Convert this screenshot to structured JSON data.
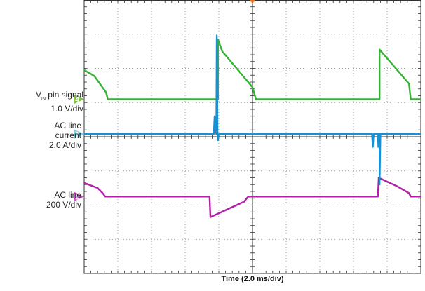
{
  "chart_data": {
    "type": "line",
    "title": "",
    "xlabel": "Time (2.0 ms/div)",
    "grid": true,
    "divisions": {
      "horizontal": 10,
      "vertical": 8
    },
    "xlim": [
      0,
      20
    ],
    "x_unit": "ms",
    "ylim_divisions": [
      0,
      8
    ],
    "trigger_marker_color": "#e8701f",
    "series": [
      {
        "channel": "4",
        "name_prefix": "V",
        "name_subscript": "IN",
        "name_suffix": " pin signal",
        "scale": "1.0 V/div",
        "color": "#34b233",
        "marker_color": "#7bc043",
        "ground_div": 5.1,
        "points": [
          [
            0.0,
            5.95
          ],
          [
            0.6,
            5.78
          ],
          [
            1.3,
            5.3
          ],
          [
            1.4,
            5.1
          ],
          [
            7.4,
            5.1
          ],
          [
            7.95,
            5.1
          ],
          [
            7.95,
            6.85
          ],
          [
            8.2,
            6.5
          ],
          [
            10.0,
            5.45
          ],
          [
            10.2,
            5.1
          ],
          [
            17.5,
            5.1
          ],
          [
            17.55,
            5.1
          ],
          [
            17.55,
            6.55
          ],
          [
            19.3,
            5.55
          ],
          [
            19.4,
            5.1
          ],
          [
            20.0,
            5.1
          ]
        ]
      },
      {
        "channel": "1",
        "name": "AC line current",
        "scale": "2.0 A/div",
        "color": "#1a8fd1",
        "marker_color": "#7fd3e6",
        "ground_div": 4.08,
        "points": [
          [
            0.0,
            4.08
          ],
          [
            7.7,
            4.08
          ],
          [
            7.75,
            4.6
          ],
          [
            7.85,
            4.08
          ],
          [
            7.88,
            6.96
          ],
          [
            7.92,
            4.1
          ],
          [
            7.95,
            3.9
          ],
          [
            8.0,
            4.08
          ],
          [
            17.1,
            4.08
          ],
          [
            17.15,
            3.7
          ],
          [
            17.2,
            4.08
          ],
          [
            17.45,
            4.08
          ],
          [
            17.48,
            3.7
          ],
          [
            17.5,
            4.08
          ],
          [
            17.55,
            4.08
          ],
          [
            17.55,
            2.6
          ],
          [
            17.6,
            4.08
          ],
          [
            20.0,
            4.08
          ]
        ]
      },
      {
        "channel": "3",
        "name": "AC line",
        "scale": "200 V/div",
        "color": "#b020a8",
        "marker_color": "#c056c0",
        "ground_div": 2.25,
        "points": [
          [
            0.0,
            2.65
          ],
          [
            0.8,
            2.5
          ],
          [
            1.1,
            2.35
          ],
          [
            1.25,
            2.25
          ],
          [
            7.45,
            2.25
          ],
          [
            7.5,
            1.65
          ],
          [
            9.5,
            2.1
          ],
          [
            9.75,
            2.25
          ],
          [
            17.45,
            2.25
          ],
          [
            17.5,
            2.8
          ],
          [
            18.6,
            2.55
          ],
          [
            19.3,
            2.35
          ],
          [
            19.4,
            2.25
          ],
          [
            20.0,
            2.25
          ]
        ]
      }
    ]
  },
  "labels": {
    "ch4_name_prefix": "V",
    "ch4_name_subscript": "IN",
    "ch4_name_suffix": " pin signal",
    "ch4_scale": "1.0 V/div",
    "ch1_line1": "AC line",
    "ch1_line2": "current",
    "ch1_scale": "2.0 A/div",
    "ch3_line1": "AC line",
    "ch3_scale": "200 V/div",
    "marker4": "4",
    "marker1": "1",
    "marker3": "3"
  }
}
